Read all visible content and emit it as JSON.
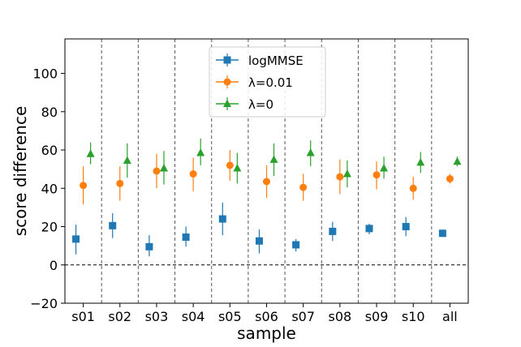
{
  "chart_data": {
    "type": "scatter",
    "xlabel": "sample",
    "ylabel": "score difference",
    "categories": [
      "s01",
      "s02",
      "s03",
      "s04",
      "s05",
      "s06",
      "s07",
      "s08",
      "s09",
      "s10",
      "all"
    ],
    "ylim": [
      -20,
      118
    ],
    "yticks": [
      -20,
      0,
      20,
      40,
      60,
      80,
      100
    ],
    "reference_line": 0,
    "category_separators": true,
    "legend_position": "top-center",
    "series": [
      {
        "name": "logMMSE",
        "color": "#1f77b4",
        "marker": "square",
        "values": [
          13.5,
          20.5,
          9.5,
          14.5,
          24,
          12.5,
          10.5,
          17.5,
          19,
          20,
          16.5
        ],
        "err_low": [
          8,
          6.5,
          5,
          5,
          8.5,
          6.5,
          3.5,
          5,
          3,
          5,
          1.5
        ],
        "err_high": [
          7.5,
          6.5,
          6,
          5.5,
          8.5,
          6,
          3,
          5,
          2.5,
          5,
          1.5
        ]
      },
      {
        "name": "λ=0.01",
        "color": "#ff7f0e",
        "marker": "circle",
        "values": [
          41.5,
          42.5,
          49,
          47.5,
          52,
          43.5,
          40.5,
          46,
          47,
          40,
          45
        ],
        "err_low": [
          10,
          9,
          9,
          9,
          8,
          8.5,
          7,
          9,
          7.5,
          6,
          2.5
        ],
        "err_high": [
          10,
          9,
          9,
          8.5,
          8,
          8.5,
          7,
          9,
          7,
          6,
          2.5
        ]
      },
      {
        "name": "λ=0",
        "color": "#2ca02c",
        "marker": "triangle",
        "values": [
          58,
          54.5,
          50.5,
          58.5,
          50.5,
          55,
          58.5,
          47.5,
          50.5,
          53.5,
          54
        ],
        "err_low": [
          5.5,
          9,
          8.5,
          6.5,
          8,
          8.5,
          7,
          7,
          5.5,
          5.5,
          2.5
        ],
        "err_high": [
          6,
          9,
          9,
          7.5,
          8,
          8.5,
          6.5,
          7,
          6,
          5.5,
          2.5
        ]
      }
    ]
  }
}
